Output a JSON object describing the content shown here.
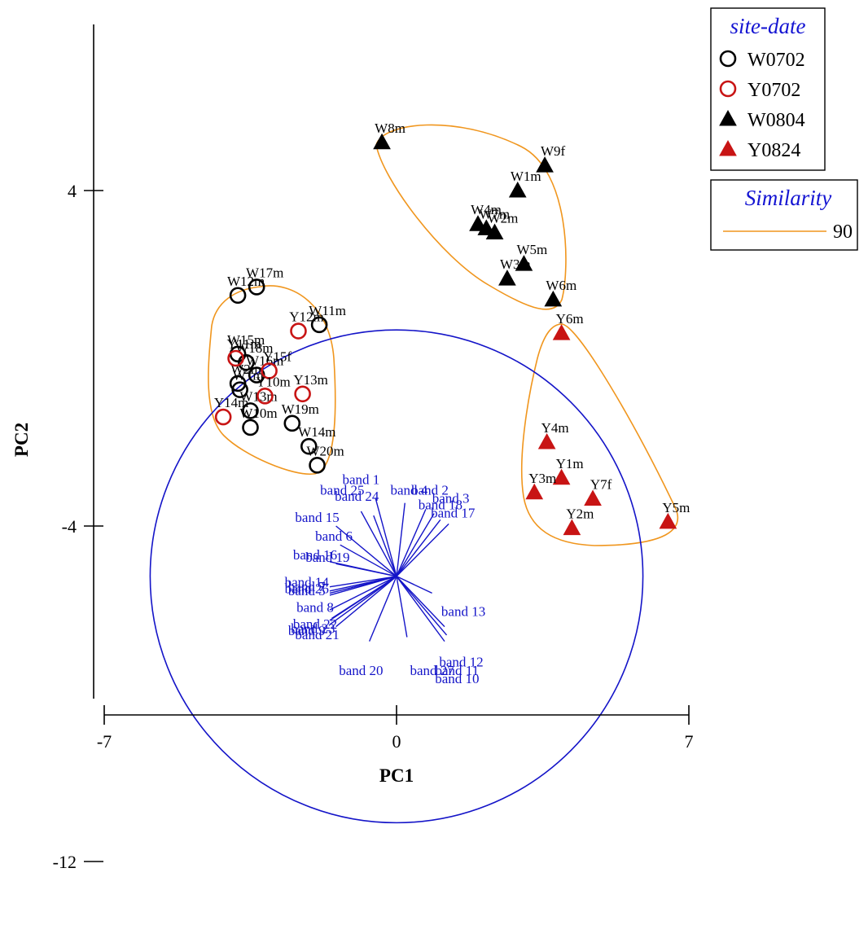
{
  "chart_data": {
    "type": "scatter",
    "title": "",
    "xlabel": "PC1",
    "ylabel": "PC2",
    "xlim": [
      -7,
      7
    ],
    "ylim": [
      -12,
      8
    ],
    "x_ticks": [
      -7,
      0,
      7
    ],
    "y_ticks": [
      -12,
      -4,
      4
    ],
    "legend": {
      "title": "site-date",
      "placement": "top-right",
      "entries": [
        {
          "label": "W0702",
          "marker": "open-circle",
          "color": "#000000"
        },
        {
          "label": "Y0702",
          "marker": "open-circle",
          "color": "#c81414"
        },
        {
          "label": "W0804",
          "marker": "filled-triangle",
          "color": "#000000"
        },
        {
          "label": "Y0824",
          "marker": "filled-triangle",
          "color": "#c81414"
        }
      ]
    },
    "similarity_legend": {
      "title": "Similarity",
      "value": "90",
      "color": "#f0961e"
    },
    "correlation_circle": {
      "center": [
        0,
        -5.2
      ],
      "radius": 5.9,
      "color": "#1414c8"
    },
    "series": [
      {
        "name": "W0702",
        "marker": "open-circle",
        "color": "#000000",
        "points": [
          {
            "label": "W17m",
            "x": -3.35,
            "y": 1.7
          },
          {
            "label": "W12m",
            "x": -3.8,
            "y": 1.5
          },
          {
            "label": "W11m",
            "x": -1.85,
            "y": 0.8
          },
          {
            "label": "W15m",
            "x": -3.8,
            "y": 0.1
          },
          {
            "label": "W18m",
            "x": -3.6,
            "y": -0.1
          },
          {
            "label": "W2m",
            "x": -3.8,
            "y": -0.6
          },
          {
            "label": "W1m",
            "x": -3.75,
            "y": -0.75
          },
          {
            "label": "W16m",
            "x": -3.35,
            "y": -0.4
          },
          {
            "label": "W13m",
            "x": -3.5,
            "y": -1.25
          },
          {
            "label": "W10m",
            "x": -3.5,
            "y": -1.65
          },
          {
            "label": "W19m",
            "x": -2.5,
            "y": -1.55
          },
          {
            "label": "W14m",
            "x": -2.1,
            "y": -2.1
          },
          {
            "label": "W20m",
            "x": -1.9,
            "y": -2.55
          }
        ]
      },
      {
        "name": "Y0702",
        "marker": "open-circle",
        "color": "#c81414",
        "points": [
          {
            "label": "Y12m",
            "x": -2.35,
            "y": 0.65
          },
          {
            "label": "Y11m",
            "x": -3.85,
            "y": 0.0
          },
          {
            "label": "Y15f",
            "x": -3.05,
            "y": -0.3
          },
          {
            "label": "Y13m",
            "x": -2.25,
            "y": -0.85
          },
          {
            "label": "Y10m",
            "x": -3.15,
            "y": -0.9
          },
          {
            "label": "Y14m",
            "x": -4.15,
            "y": -1.4
          }
        ]
      },
      {
        "name": "W0804",
        "marker": "filled-triangle",
        "color": "#000000",
        "points": [
          {
            "label": "W8m",
            "x": -0.35,
            "y": 5.15
          },
          {
            "label": "W9f",
            "x": 3.55,
            "y": 4.6
          },
          {
            "label": "W1m",
            "x": 2.9,
            "y": 4.0
          },
          {
            "label": "W4m",
            "x": 1.95,
            "y": 3.2
          },
          {
            "label": "W7m",
            "x": 2.15,
            "y": 3.1
          },
          {
            "label": "W2m",
            "x": 2.35,
            "y": 3.0
          },
          {
            "label": "W5m",
            "x": 3.05,
            "y": 2.25
          },
          {
            "label": "W3m",
            "x": 2.65,
            "y": 1.9
          },
          {
            "label": "W6m",
            "x": 3.75,
            "y": 1.4
          }
        ]
      },
      {
        "name": "Y0824",
        "marker": "filled-triangle",
        "color": "#c81414",
        "points": [
          {
            "label": "Y6m",
            "x": 3.95,
            "y": 0.6
          },
          {
            "label": "Y4m",
            "x": 3.6,
            "y": -2.0
          },
          {
            "label": "Y1m",
            "x": 3.95,
            "y": -2.85
          },
          {
            "label": "Y7f",
            "x": 4.7,
            "y": -3.35
          },
          {
            "label": "Y3m",
            "x": 3.3,
            "y": -3.2
          },
          {
            "label": "Y2m",
            "x": 4.2,
            "y": -4.05
          },
          {
            "label": "Y5m",
            "x": 6.5,
            "y": -3.9
          }
        ]
      }
    ],
    "vectors": [
      {
        "label": "band 1",
        "x": -0.5,
        "y": -3.35
      },
      {
        "label": "band 25",
        "x": -0.85,
        "y": -3.65
      },
      {
        "label": "band 24",
        "x": -0.55,
        "y": -3.75
      },
      {
        "label": "band 4",
        "x": 0.2,
        "y": -3.45
      },
      {
        "label": "band 2",
        "x": 0.7,
        "y": -3.6
      },
      {
        "label": "band 3",
        "x": 0.9,
        "y": -3.7
      },
      {
        "label": "band 18",
        "x": 1.05,
        "y": -3.85
      },
      {
        "label": "band 17",
        "x": 1.25,
        "y": -3.95
      },
      {
        "label": "band 15",
        "x": -1.45,
        "y": -4.0
      },
      {
        "label": "band 6",
        "x": -1.35,
        "y": -4.45
      },
      {
        "label": "band 16",
        "x": -1.6,
        "y": -4.85
      },
      {
        "label": "band 19",
        "x": -1.45,
        "y": -4.9
      },
      {
        "label": "band 14",
        "x": -1.6,
        "y": -5.45
      },
      {
        "label": "band 7",
        "x": -1.6,
        "y": -5.55
      },
      {
        "label": "band 26",
        "x": -1.6,
        "y": -5.6
      },
      {
        "label": "band 5",
        "x": -1.6,
        "y": -5.65
      },
      {
        "label": "band 8",
        "x": -1.6,
        "y": -6.0
      },
      {
        "label": "band 22",
        "x": -1.55,
        "y": -6.2
      },
      {
        "label": "band 23",
        "x": -1.6,
        "y": -6.25
      },
      {
        "label": "band 9",
        "x": -1.6,
        "y": -6.35
      },
      {
        "label": "band 21",
        "x": -1.45,
        "y": -6.4
      },
      {
        "label": "band 20",
        "x": -0.65,
        "y": -6.75
      },
      {
        "label": "band 13",
        "x": 0.85,
        "y": -5.6
      },
      {
        "label": "band 12",
        "x": 1.15,
        "y": -6.4
      },
      {
        "label": "band 11",
        "x": 1.2,
        "y": -6.6
      },
      {
        "label": "band 10",
        "x": 1.15,
        "y": -6.75
      },
      {
        "label": "band 27",
        "x": 0.25,
        "y": -6.65
      }
    ],
    "vector_label_positions": {
      "band 1": [
        -0.85,
        -3.0
      ],
      "band 25": [
        -1.3,
        -3.25
      ],
      "band 24": [
        -0.95,
        -3.4
      ],
      "band 4": [
        0.3,
        -3.25
      ],
      "band 2": [
        0.8,
        -3.25
      ],
      "band 3": [
        1.3,
        -3.45
      ],
      "band 18": [
        1.05,
        -3.6
      ],
      "band 17": [
        1.35,
        -3.8
      ],
      "band 15": [
        -1.9,
        -3.9
      ],
      "band 6": [
        -1.5,
        -4.35
      ],
      "band 16": [
        -1.95,
        -4.8
      ],
      "band 19": [
        -1.65,
        -4.85
      ],
      "band 14": [
        -2.15,
        -5.45
      ],
      "band 7": [
        -2.15,
        -5.55
      ],
      "band 26": [
        -2.15,
        -5.6
      ],
      "band 5": [
        -2.15,
        -5.65
      ],
      "band 8": [
        -1.95,
        -6.05
      ],
      "band 22": [
        -1.95,
        -6.45
      ],
      "band 23": [
        -2.0,
        -6.55
      ],
      "band 9": [
        -2.15,
        -6.6
      ],
      "band 21": [
        -1.9,
        -6.7
      ],
      "band 20": [
        -0.85,
        -7.55
      ],
      "band 13": [
        1.6,
        -6.15
      ],
      "band 12": [
        1.55,
        -7.35
      ],
      "band 11": [
        1.45,
        -7.55
      ],
      "band 10": [
        1.45,
        -7.75
      ],
      "band 27": [
        0.85,
        -7.55
      ]
    }
  }
}
